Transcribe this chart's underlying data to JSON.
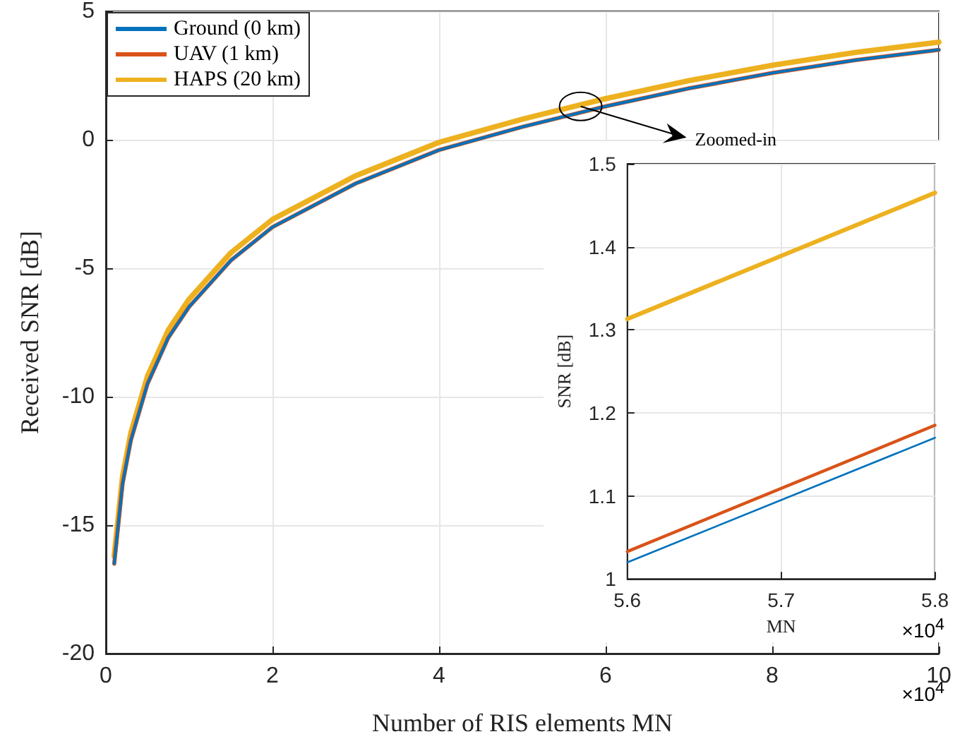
{
  "chart_data": [
    {
      "type": "line",
      "xlabel": "Number of RIS elements MN",
      "ylabel": "Received SNR [dB]",
      "x": [
        0.1,
        0.2,
        0.3,
        0.5,
        0.75,
        1,
        1.5,
        2,
        3,
        4,
        5,
        6,
        7,
        8,
        9,
        10
      ],
      "series": [
        {
          "name": "Ground (0 km)",
          "color": "#0072bd",
          "values": [
            -16.5,
            -13.4,
            -11.7,
            -9.5,
            -7.7,
            -6.5,
            -4.7,
            -3.4,
            -1.7,
            -0.4,
            0.5,
            1.3,
            2.0,
            2.6,
            3.1,
            3.5
          ]
        },
        {
          "name": "UAV (1 km)",
          "color": "#d95319",
          "values": [
            -16.5,
            -13.4,
            -11.7,
            -9.5,
            -7.7,
            -6.5,
            -4.7,
            -3.4,
            -1.7,
            -0.4,
            0.5,
            1.3,
            2.0,
            2.6,
            3.1,
            3.5
          ]
        },
        {
          "name": "HAPS (20 km)",
          "color": "#edb120",
          "values": [
            -16.2,
            -13.1,
            -11.4,
            -9.2,
            -7.4,
            -6.2,
            -4.4,
            -3.1,
            -1.4,
            -0.1,
            0.8,
            1.6,
            2.3,
            2.9,
            3.4,
            3.8
          ]
        }
      ],
      "xlim": [
        0,
        10
      ],
      "xticks": [
        0,
        2,
        4,
        6,
        8,
        10
      ],
      "ylim": [
        -20,
        5
      ],
      "yticks": [
        -20,
        -15,
        -10,
        -5,
        0,
        5
      ],
      "annotations": [
        "×10$^{4}$",
        {
          "text": "Zoomed-in",
          "x": 5.7,
          "y": 1.3
        }
      ],
      "grid": true,
      "legend": "top left",
      "marker": "none",
      "line_style": "solid"
    },
    {
      "type": "line",
      "xlabel": "MN",
      "ylabel": "SNR [dB]",
      "x": [
        5.6,
        5.8
      ],
      "series": [
        {
          "color": "#0072bd",
          "values": [
            1.02,
            1.17
          ]
        },
        {
          "color": "#d95319",
          "values": [
            1.033,
            1.185
          ]
        },
        {
          "color": "#edb120",
          "values": [
            1.313,
            1.465
          ]
        }
      ],
      "xlim": [
        5.6,
        5.8
      ],
      "xticks": [
        5.6,
        5.7,
        5.8
      ],
      "ylim": [
        1,
        1.5
      ],
      "yticks": [
        1,
        1.1,
        1.2,
        1.3,
        1.4,
        1.5
      ],
      "annotations": [
        "×10$^{4}$"
      ],
      "grid": true,
      "marker": "none",
      "line_style": "solid"
    }
  ]
}
